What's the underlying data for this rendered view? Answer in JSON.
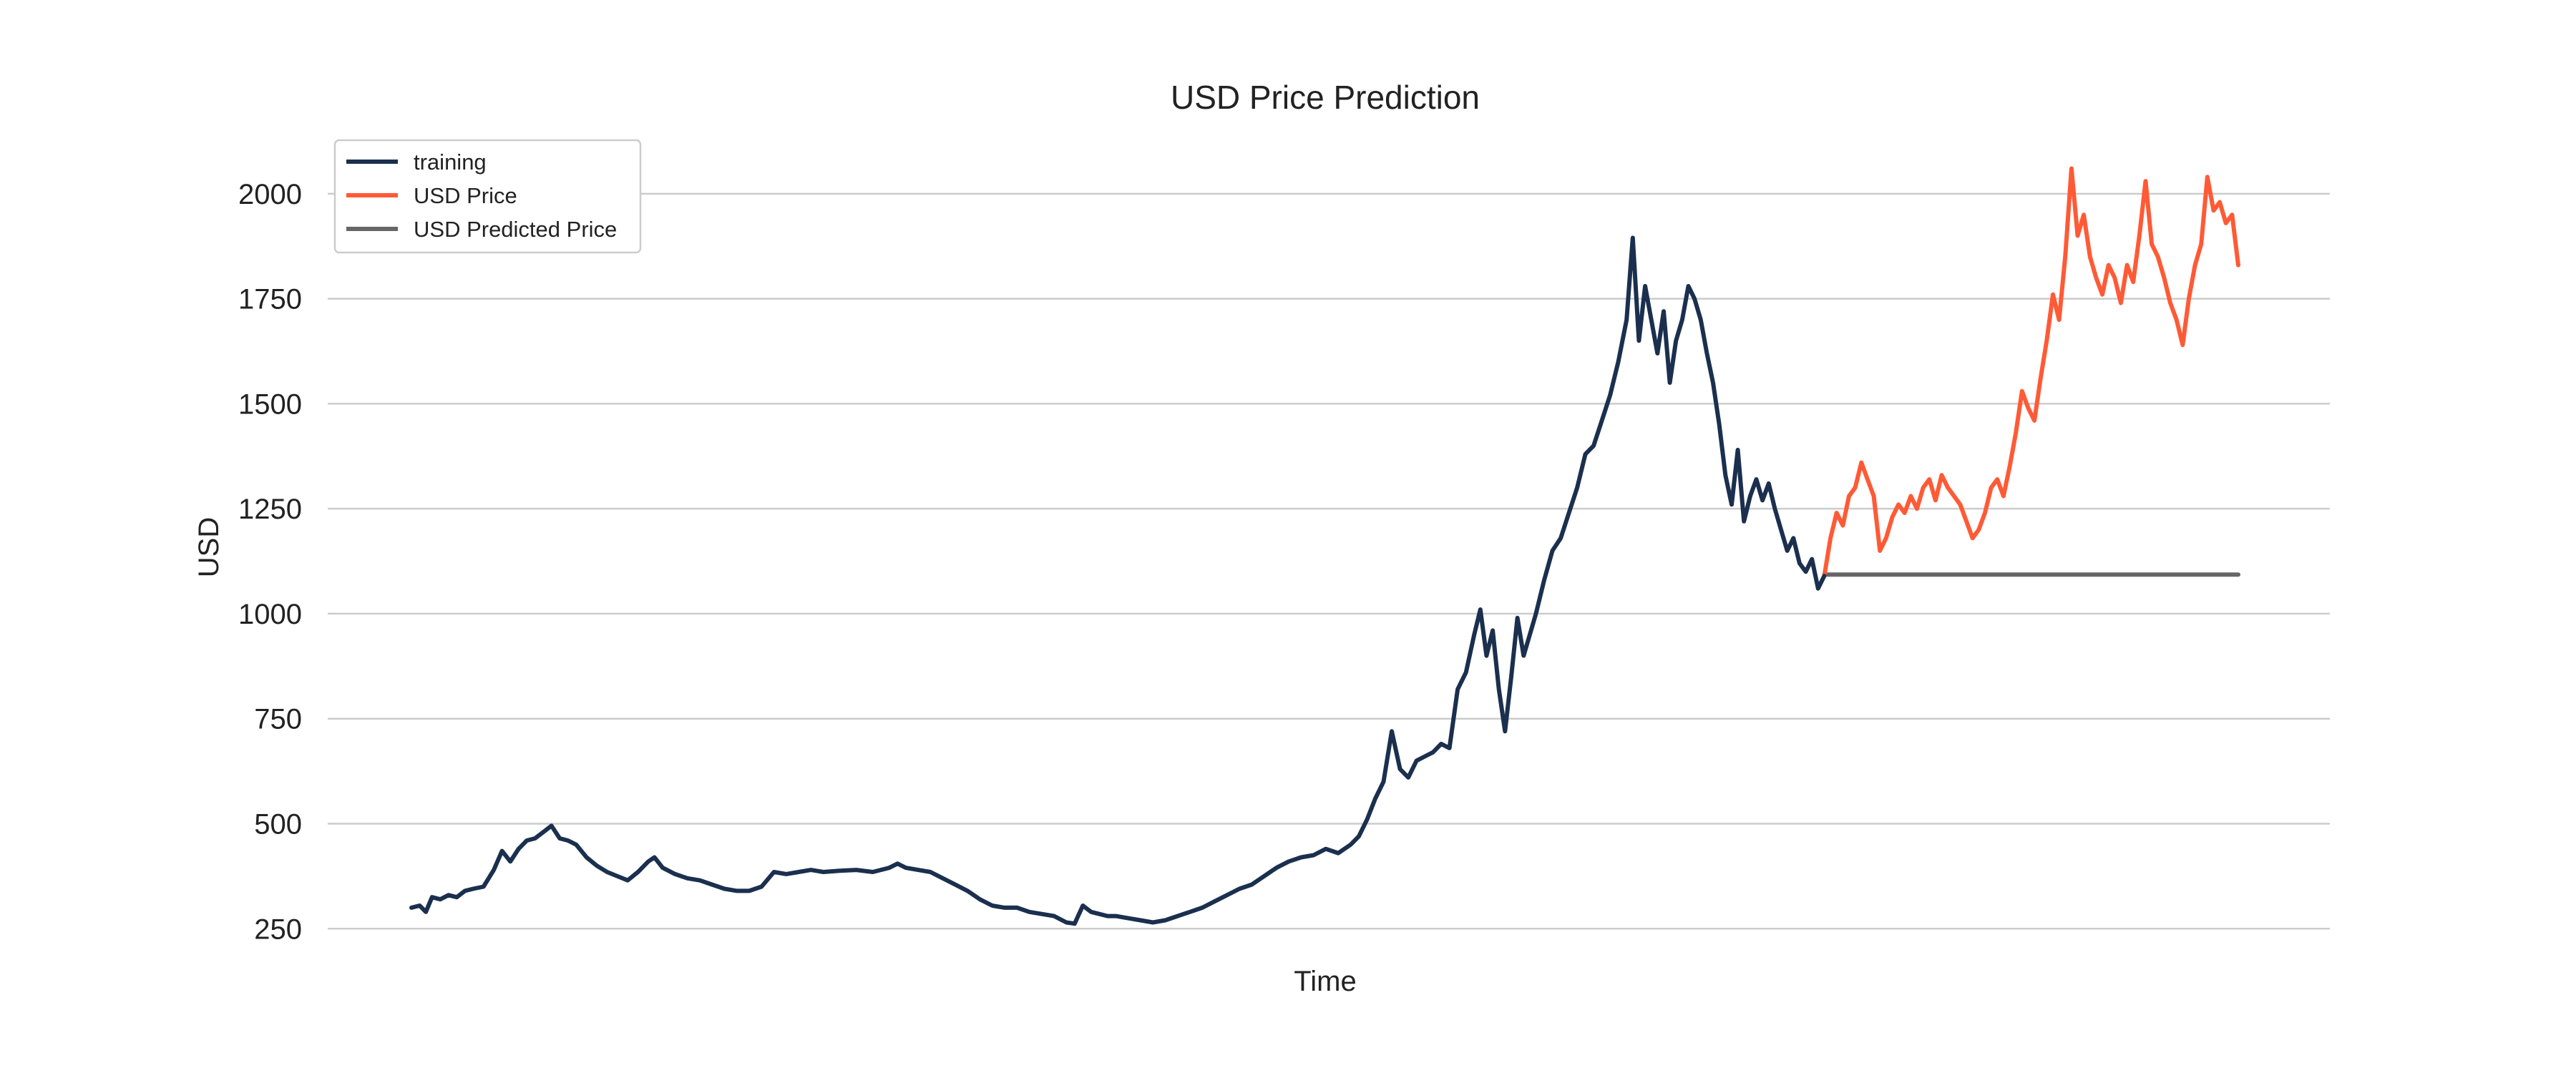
{
  "chart_data": {
    "type": "line",
    "title": "USD Price Prediction",
    "xlabel": "Time",
    "ylabel": "USD",
    "ylim": [
      230,
      2090
    ],
    "yticks": [
      250,
      500,
      750,
      1000,
      1250,
      1500,
      1750,
      2000
    ],
    "grid": "horizontal",
    "legend_position": "top-left",
    "x_ticks_shown": false,
    "series": [
      {
        "name": "training",
        "color": "#1b2f4e",
        "points": [
          [
            0,
            300
          ],
          [
            4,
            305
          ],
          [
            7,
            290
          ],
          [
            10,
            325
          ],
          [
            14,
            320
          ],
          [
            18,
            330
          ],
          [
            22,
            325
          ],
          [
            26,
            340
          ],
          [
            30,
            345
          ],
          [
            35,
            350
          ],
          [
            40,
            390
          ],
          [
            44,
            435
          ],
          [
            48,
            410
          ],
          [
            52,
            440
          ],
          [
            56,
            460
          ],
          [
            60,
            465
          ],
          [
            64,
            480
          ],
          [
            68,
            495
          ],
          [
            72,
            465
          ],
          [
            76,
            460
          ],
          [
            80,
            450
          ],
          [
            85,
            420
          ],
          [
            90,
            400
          ],
          [
            95,
            385
          ],
          [
            100,
            375
          ],
          [
            105,
            365
          ],
          [
            110,
            385
          ],
          [
            115,
            410
          ],
          [
            118,
            420
          ],
          [
            122,
            395
          ],
          [
            128,
            380
          ],
          [
            134,
            370
          ],
          [
            140,
            365
          ],
          [
            146,
            355
          ],
          [
            152,
            345
          ],
          [
            158,
            340
          ],
          [
            164,
            340
          ],
          [
            170,
            350
          ],
          [
            176,
            385
          ],
          [
            182,
            380
          ],
          [
            188,
            385
          ],
          [
            194,
            390
          ],
          [
            200,
            385
          ],
          [
            208,
            388
          ],
          [
            216,
            390
          ],
          [
            224,
            385
          ],
          [
            232,
            395
          ],
          [
            236,
            405
          ],
          [
            240,
            395
          ],
          [
            246,
            390
          ],
          [
            252,
            385
          ],
          [
            258,
            370
          ],
          [
            264,
            355
          ],
          [
            270,
            340
          ],
          [
            276,
            320
          ],
          [
            282,
            305
          ],
          [
            288,
            300
          ],
          [
            294,
            300
          ],
          [
            300,
            290
          ],
          [
            306,
            285
          ],
          [
            312,
            280
          ],
          [
            318,
            265
          ],
          [
            322,
            262
          ],
          [
            326,
            305
          ],
          [
            330,
            290
          ],
          [
            334,
            285
          ],
          [
            338,
            280
          ],
          [
            342,
            280
          ],
          [
            348,
            275
          ],
          [
            354,
            270
          ],
          [
            360,
            265
          ],
          [
            366,
            270
          ],
          [
            372,
            280
          ],
          [
            378,
            290
          ],
          [
            384,
            300
          ],
          [
            390,
            315
          ],
          [
            396,
            330
          ],
          [
            402,
            345
          ],
          [
            408,
            355
          ],
          [
            414,
            375
          ],
          [
            420,
            395
          ],
          [
            426,
            410
          ],
          [
            432,
            420
          ],
          [
            438,
            425
          ],
          [
            444,
            440
          ],
          [
            450,
            430
          ],
          [
            456,
            450
          ],
          [
            460,
            470
          ],
          [
            464,
            510
          ],
          [
            468,
            560
          ],
          [
            472,
            600
          ],
          [
            476,
            720
          ],
          [
            480,
            630
          ],
          [
            484,
            610
          ],
          [
            488,
            650
          ],
          [
            492,
            660
          ],
          [
            496,
            670
          ],
          [
            500,
            690
          ],
          [
            504,
            680
          ],
          [
            508,
            820
          ],
          [
            512,
            860
          ],
          [
            516,
            950
          ],
          [
            519,
            1010
          ],
          [
            522,
            900
          ],
          [
            525,
            960
          ],
          [
            528,
            820
          ],
          [
            531,
            720
          ],
          [
            534,
            850
          ],
          [
            537,
            990
          ],
          [
            540,
            900
          ],
          [
            543,
            950
          ],
          [
            546,
            1000
          ],
          [
            550,
            1080
          ],
          [
            554,
            1150
          ],
          [
            558,
            1180
          ],
          [
            562,
            1240
          ],
          [
            566,
            1300
          ],
          [
            570,
            1380
          ],
          [
            574,
            1400
          ],
          [
            578,
            1460
          ],
          [
            582,
            1520
          ],
          [
            586,
            1600
          ],
          [
            590,
            1700
          ],
          [
            593,
            1895
          ],
          [
            596,
            1650
          ],
          [
            599,
            1780
          ],
          [
            602,
            1700
          ],
          [
            605,
            1620
          ],
          [
            608,
            1720
          ],
          [
            611,
            1550
          ],
          [
            614,
            1650
          ],
          [
            617,
            1700
          ],
          [
            620,
            1780
          ],
          [
            623,
            1750
          ],
          [
            626,
            1700
          ],
          [
            629,
            1620
          ],
          [
            632,
            1550
          ],
          [
            635,
            1450
          ],
          [
            638,
            1330
          ],
          [
            641,
            1260
          ],
          [
            644,
            1390
          ],
          [
            647,
            1220
          ],
          [
            650,
            1280
          ],
          [
            653,
            1320
          ],
          [
            656,
            1270
          ],
          [
            659,
            1310
          ],
          [
            662,
            1250
          ],
          [
            665,
            1200
          ],
          [
            668,
            1150
          ],
          [
            671,
            1180
          ],
          [
            674,
            1120
          ],
          [
            677,
            1100
          ],
          [
            680,
            1130
          ],
          [
            683,
            1060
          ],
          [
            686,
            1090
          ]
        ]
      },
      {
        "name": "USD Price",
        "color": "#ff5a36",
        "points": [
          [
            686,
            1090
          ],
          [
            689,
            1180
          ],
          [
            692,
            1240
          ],
          [
            695,
            1210
          ],
          [
            698,
            1280
          ],
          [
            701,
            1300
          ],
          [
            704,
            1360
          ],
          [
            707,
            1320
          ],
          [
            710,
            1280
          ],
          [
            713,
            1150
          ],
          [
            716,
            1180
          ],
          [
            719,
            1230
          ],
          [
            722,
            1260
          ],
          [
            725,
            1240
          ],
          [
            728,
            1280
          ],
          [
            731,
            1250
          ],
          [
            734,
            1300
          ],
          [
            737,
            1320
          ],
          [
            740,
            1270
          ],
          [
            743,
            1330
          ],
          [
            746,
            1300
          ],
          [
            749,
            1280
          ],
          [
            752,
            1260
          ],
          [
            755,
            1220
          ],
          [
            758,
            1180
          ],
          [
            761,
            1200
          ],
          [
            764,
            1240
          ],
          [
            767,
            1300
          ],
          [
            770,
            1320
          ],
          [
            773,
            1280
          ],
          [
            776,
            1350
          ],
          [
            779,
            1430
          ],
          [
            782,
            1530
          ],
          [
            785,
            1490
          ],
          [
            788,
            1460
          ],
          [
            791,
            1560
          ],
          [
            794,
            1650
          ],
          [
            797,
            1760
          ],
          [
            800,
            1700
          ],
          [
            803,
            1850
          ],
          [
            806,
            2060
          ],
          [
            809,
            1900
          ],
          [
            812,
            1950
          ],
          [
            815,
            1850
          ],
          [
            818,
            1800
          ],
          [
            821,
            1760
          ],
          [
            824,
            1830
          ],
          [
            827,
            1800
          ],
          [
            830,
            1740
          ],
          [
            833,
            1830
          ],
          [
            836,
            1790
          ],
          [
            839,
            1900
          ],
          [
            842,
            2030
          ],
          [
            845,
            1880
          ],
          [
            848,
            1850
          ],
          [
            851,
            1800
          ],
          [
            854,
            1740
          ],
          [
            857,
            1700
          ],
          [
            860,
            1640
          ],
          [
            863,
            1750
          ],
          [
            866,
            1830
          ],
          [
            869,
            1880
          ],
          [
            872,
            2040
          ],
          [
            875,
            1960
          ],
          [
            878,
            1980
          ],
          [
            881,
            1930
          ],
          [
            884,
            1950
          ],
          [
            887,
            1830
          ]
        ]
      },
      {
        "name": "USD Predicted Price",
        "color": "#666666",
        "points": [
          [
            686,
            1093
          ],
          [
            887,
            1093
          ]
        ]
      }
    ]
  }
}
